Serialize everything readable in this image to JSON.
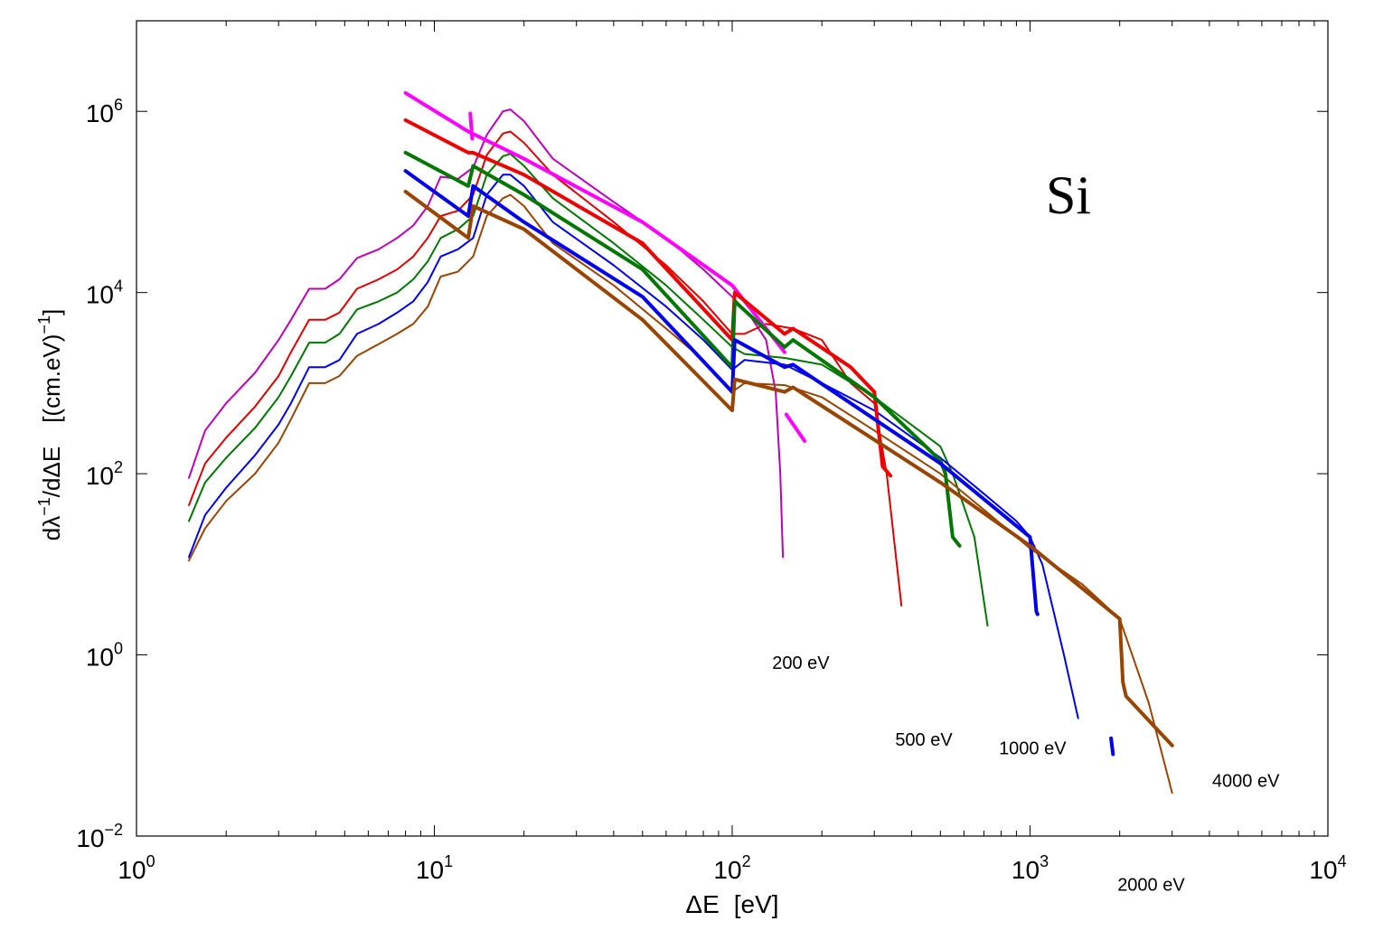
{
  "chart_data": {
    "type": "line",
    "title": "",
    "material_label": "Si",
    "xlabel_parts": [
      "ΔE",
      "[eV]"
    ],
    "ylabel_parts": [
      "dλ",
      "−1",
      "/dΔE",
      "[(cm.eV)",
      "−1",
      "]"
    ],
    "x_scale": "log",
    "y_scale": "log",
    "xlim": [
      1,
      10000
    ],
    "ylim": [
      0.01,
      10000000
    ],
    "grid": false,
    "legend": "none",
    "x_ticks": [
      {
        "base": "10",
        "exp": "0",
        "value": 1
      },
      {
        "base": "10",
        "exp": "1",
        "value": 10
      },
      {
        "base": "10",
        "exp": "2",
        "value": 100
      },
      {
        "base": "10",
        "exp": "3",
        "value": 1000
      },
      {
        "base": "10",
        "exp": "4",
        "value": 10000
      }
    ],
    "y_ticks": [
      {
        "base": "10",
        "exp": "−2",
        "value": 0.01
      },
      {
        "base": "10",
        "exp": "0",
        "value": 1
      },
      {
        "base": "10",
        "exp": "2",
        "value": 100
      },
      {
        "base": "10",
        "exp": "4",
        "value": 10000
      },
      {
        "base": "10",
        "exp": "6",
        "value": 1000000
      }
    ],
    "annotations": [
      {
        "text": "200 eV",
        "x": 170,
        "y": 0.7
      },
      {
        "text": "500 eV",
        "x": 440,
        "y": 0.1
      },
      {
        "text": "1000 eV",
        "x": 1020,
        "y": 0.08
      },
      {
        "text": "2000 eV",
        "x": 2550,
        "y": 0.0025
      },
      {
        "text": "4000 eV",
        "x": 5300,
        "y": 0.035
      }
    ],
    "series": [
      {
        "color": "#bb00bb",
        "style": "thin",
        "points": [
          [
            1.5,
            90
          ],
          [
            1.7,
            300
          ],
          [
            2,
            600
          ],
          [
            2.5,
            1300
          ],
          [
            3,
            3000
          ],
          [
            3.3,
            5000
          ],
          [
            3.8,
            11000
          ],
          [
            4.3,
            11000
          ],
          [
            4.8,
            14000
          ],
          [
            5.5,
            24000
          ],
          [
            6.5,
            30000
          ],
          [
            7.5,
            40000
          ],
          [
            8.5,
            55000
          ],
          [
            9.5,
            90000
          ],
          [
            10.5,
            190000
          ],
          [
            12,
            180000
          ],
          [
            13.5,
            240000
          ],
          [
            15,
            550000
          ],
          [
            17,
            1000000
          ],
          [
            18,
            1050000
          ],
          [
            20,
            780000
          ],
          [
            25,
            300000
          ],
          [
            40,
            100000
          ],
          [
            60,
            40000
          ],
          [
            80,
            18000
          ],
          [
            100,
            9000
          ],
          [
            115,
            5500
          ],
          [
            130,
            3000
          ],
          [
            140,
            800
          ],
          [
            145,
            100
          ],
          [
            148,
            12
          ]
        ]
      },
      {
        "color": "#dd0000",
        "style": "thin",
        "points": [
          [
            1.5,
            45
          ],
          [
            1.7,
            130
          ],
          [
            2,
            250
          ],
          [
            2.5,
            550
          ],
          [
            3,
            1200
          ],
          [
            3.3,
            2200
          ],
          [
            3.8,
            5000
          ],
          [
            4.3,
            5000
          ],
          [
            4.8,
            6000
          ],
          [
            5.5,
            11000
          ],
          [
            6.5,
            14000
          ],
          [
            7.5,
            18000
          ],
          [
            8.5,
            25000
          ],
          [
            9.5,
            40000
          ],
          [
            10.5,
            70000
          ],
          [
            12,
            80000
          ],
          [
            13.5,
            120000
          ],
          [
            15,
            330000
          ],
          [
            17,
            570000
          ],
          [
            18,
            600000
          ],
          [
            20,
            450000
          ],
          [
            25,
            200000
          ],
          [
            40,
            60000
          ],
          [
            60,
            20000
          ],
          [
            80,
            8000
          ],
          [
            100,
            3500
          ],
          [
            110,
            3500
          ],
          [
            130,
            4500
          ],
          [
            160,
            4000
          ],
          [
            200,
            3000
          ],
          [
            250,
            1000
          ],
          [
            300,
            600
          ],
          [
            330,
            100
          ],
          [
            370,
            3.5
          ]
        ]
      },
      {
        "color": "#007700",
        "style": "thin",
        "points": [
          [
            1.5,
            30
          ],
          [
            1.7,
            80
          ],
          [
            2,
            150
          ],
          [
            2.5,
            320
          ],
          [
            3,
            700
          ],
          [
            3.3,
            1200
          ],
          [
            3.8,
            2800
          ],
          [
            4.3,
            2800
          ],
          [
            4.8,
            3500
          ],
          [
            5.5,
            6500
          ],
          [
            6.5,
            8000
          ],
          [
            7.5,
            10000
          ],
          [
            8.5,
            14000
          ],
          [
            9.5,
            22000
          ],
          [
            10.5,
            40000
          ],
          [
            12,
            50000
          ],
          [
            13.5,
            70000
          ],
          [
            15,
            200000
          ],
          [
            17,
            320000
          ],
          [
            18,
            340000
          ],
          [
            20,
            250000
          ],
          [
            25,
            110000
          ],
          [
            40,
            35000
          ],
          [
            60,
            12000
          ],
          [
            80,
            5000
          ],
          [
            100,
            2500
          ],
          [
            110,
            2100
          ],
          [
            150,
            1900
          ],
          [
            200,
            1600
          ],
          [
            300,
            700
          ],
          [
            500,
            200
          ],
          [
            550,
            100
          ],
          [
            650,
            20
          ],
          [
            720,
            2.1
          ]
        ]
      },
      {
        "color": "#0000ee",
        "style": "thin",
        "points": [
          [
            1.5,
            12
          ],
          [
            1.7,
            35
          ],
          [
            2,
            70
          ],
          [
            2.5,
            160
          ],
          [
            3,
            350
          ],
          [
            3.3,
            600
          ],
          [
            3.8,
            1500
          ],
          [
            4.3,
            1500
          ],
          [
            4.8,
            1800
          ],
          [
            5.5,
            3500
          ],
          [
            6.5,
            4500
          ],
          [
            7.5,
            6000
          ],
          [
            8.5,
            8000
          ],
          [
            9.5,
            13000
          ],
          [
            10.5,
            25000
          ],
          [
            12,
            30000
          ],
          [
            13.5,
            40000
          ],
          [
            15,
            120000
          ],
          [
            17,
            200000
          ],
          [
            18,
            200000
          ],
          [
            20,
            150000
          ],
          [
            25,
            60000
          ],
          [
            40,
            20000
          ],
          [
            60,
            7000
          ],
          [
            80,
            3000
          ],
          [
            100,
            1400
          ],
          [
            110,
            1800
          ],
          [
            150,
            1600
          ],
          [
            200,
            1000
          ],
          [
            300,
            500
          ],
          [
            500,
            150
          ],
          [
            700,
            60
          ],
          [
            900,
            30
          ],
          [
            1000,
            20
          ],
          [
            1100,
            10
          ],
          [
            1300,
            1
          ],
          [
            1450,
            0.2
          ]
        ]
      },
      {
        "color": "#994400",
        "style": "thin",
        "points": [
          [
            1.5,
            11
          ],
          [
            1.7,
            25
          ],
          [
            2,
            50
          ],
          [
            2.5,
            100
          ],
          [
            3,
            220
          ],
          [
            3.3,
            400
          ],
          [
            3.8,
            1000
          ],
          [
            4.3,
            1000
          ],
          [
            4.8,
            1200
          ],
          [
            5.5,
            2000
          ],
          [
            6.5,
            2700
          ],
          [
            7.5,
            3500
          ],
          [
            8.5,
            4500
          ],
          [
            9.5,
            7000
          ],
          [
            10.5,
            15000
          ],
          [
            12,
            17000
          ],
          [
            13.5,
            25000
          ],
          [
            15,
            70000
          ],
          [
            17,
            110000
          ],
          [
            18,
            120000
          ],
          [
            20,
            90000
          ],
          [
            25,
            35000
          ],
          [
            40,
            12000
          ],
          [
            60,
            4000
          ],
          [
            80,
            1800
          ],
          [
            100,
            800
          ],
          [
            110,
            1000
          ],
          [
            150,
            950
          ],
          [
            200,
            700
          ],
          [
            300,
            300
          ],
          [
            500,
            100
          ],
          [
            700,
            40
          ],
          [
            1000,
            15
          ],
          [
            1500,
            6
          ],
          [
            2000,
            2.5
          ],
          [
            2500,
            0.3
          ],
          [
            3000,
            0.03
          ]
        ]
      },
      {
        "color": "#ff00ff",
        "style": "thick",
        "points": [
          [
            8,
            1600000
          ],
          [
            13,
            600000
          ],
          [
            20,
            300000
          ],
          [
            50,
            60000
          ],
          [
            100,
            12000
          ],
          [
            150,
            2200
          ]
        ]
      },
      {
        "color": "#ff00ff",
        "style": "thick",
        "points": [
          [
            152,
            450
          ],
          [
            175,
            230
          ]
        ]
      },
      {
        "color": "#ff00ff",
        "style": "thick",
        "points": [
          [
            13.2,
            950000
          ],
          [
            13.4,
            500000
          ]
        ]
      },
      {
        "color": "#ee0000",
        "style": "thick",
        "points": [
          [
            8,
            800000
          ],
          [
            13,
            350000
          ],
          [
            13.5,
            350000
          ],
          [
            20,
            200000
          ],
          [
            50,
            35000
          ],
          [
            100,
            3000
          ],
          [
            102,
            10000
          ],
          [
            150,
            3500
          ],
          [
            160,
            4000
          ],
          [
            250,
            1500
          ],
          [
            300,
            800
          ],
          [
            310,
            300
          ],
          [
            320,
            120
          ],
          [
            340,
            95
          ]
        ]
      },
      {
        "color": "#007700",
        "style": "thick",
        "points": [
          [
            8,
            350000
          ],
          [
            13,
            150000
          ],
          [
            13.5,
            250000
          ],
          [
            20,
            120000
          ],
          [
            50,
            18000
          ],
          [
            100,
            1500
          ],
          [
            102,
            8000
          ],
          [
            150,
            2500
          ],
          [
            160,
            3000
          ],
          [
            300,
            700
          ],
          [
            500,
            140
          ],
          [
            520,
            100
          ],
          [
            550,
            20
          ],
          [
            580,
            16
          ]
        ]
      },
      {
        "color": "#0000ee",
        "style": "thick",
        "points": [
          [
            8,
            220000
          ],
          [
            13,
            70000
          ],
          [
            13.5,
            150000
          ],
          [
            20,
            60000
          ],
          [
            50,
            9000
          ],
          [
            100,
            800
          ],
          [
            102,
            3000
          ],
          [
            150,
            1500
          ],
          [
            160,
            1600
          ],
          [
            500,
            130
          ],
          [
            1000,
            20
          ],
          [
            1050,
            3
          ],
          [
            1060,
            2.8
          ]
        ]
      },
      {
        "color": "#0000ee",
        "style": "thick",
        "points": [
          [
            1870,
            0.12
          ],
          [
            1900,
            0.08
          ]
        ]
      },
      {
        "color": "#994400",
        "style": "thick",
        "points": [
          [
            8,
            130000
          ],
          [
            13,
            40000
          ],
          [
            13.5,
            90000
          ],
          [
            20,
            50000
          ],
          [
            50,
            5000
          ],
          [
            100,
            500
          ],
          [
            102,
            1100
          ],
          [
            150,
            800
          ],
          [
            160,
            900
          ],
          [
            500,
            80
          ],
          [
            1000,
            16
          ],
          [
            2000,
            2.5
          ],
          [
            2050,
            0.5
          ],
          [
            2100,
            0.35
          ],
          [
            3000,
            0.1
          ]
        ]
      }
    ]
  }
}
